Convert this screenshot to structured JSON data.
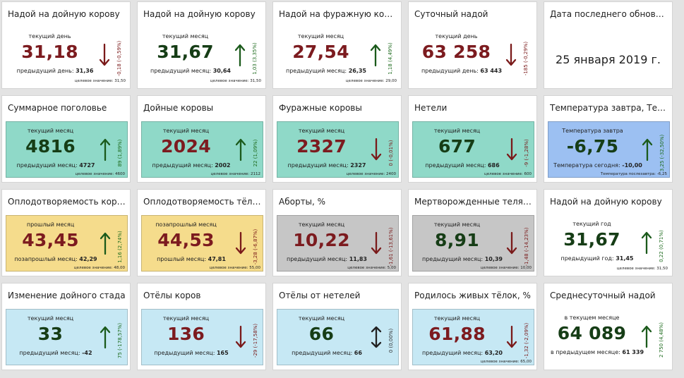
{
  "date_tile": {
    "title": "Дата последнего обновлен...",
    "value": "25 января 2019 г."
  },
  "rows": [
    [
      {
        "title": "Надой на дойную корову",
        "bg": "",
        "label": "текущий день",
        "value": "31,18",
        "value_color": "red",
        "arrow": "down",
        "delta": "-0,18 (-0,59%)",
        "prev_label": "предыдущий день:",
        "prev_value": "31,36",
        "target": "целевое значение: 31,50"
      },
      {
        "title": "Надой на дойную корову",
        "bg": "",
        "label": "текущий месяц",
        "value": "31,67",
        "value_color": "green",
        "arrow": "up",
        "delta": "1,03 (3,35%)",
        "prev_label": "предыдущий месяц:",
        "prev_value": "30,64",
        "target": "целевое значение: 31,50"
      },
      {
        "title": "Надой на фуражную корову",
        "bg": "",
        "label": "текущий месяц",
        "value": "27,54",
        "value_color": "red",
        "arrow": "up",
        "delta": "1,18 (4,49%)",
        "prev_label": "предыдущий месяц:",
        "prev_value": "26,35",
        "target": "целевое значение: 29,00"
      },
      {
        "title": "Суточный надой",
        "bg": "",
        "label": "текущий день",
        "value": "63 258",
        "value_color": "red",
        "arrow": "down",
        "delta": "-185 (-0,29%)",
        "prev_label": "предыдущий день:",
        "prev_value": "63 443",
        "target": ""
      }
    ],
    [
      {
        "title": "Суммарное поголовье",
        "bg": "#8fd9c8",
        "label": "текущий месяц",
        "value": "4816",
        "value_color": "green",
        "arrow": "up",
        "delta": "89 (1,89%)",
        "prev_label": "предыдущий месяц:",
        "prev_value": "4727",
        "target": "целевое значение: 4600"
      },
      {
        "title": "Дойные коровы",
        "bg": "#8fd9c8",
        "label": "текущий месяц",
        "value": "2024",
        "value_color": "red",
        "arrow": "up",
        "delta": "22 (1,09%)",
        "prev_label": "предыдущий месяц:",
        "prev_value": "2002",
        "target": "целевое значение: 2112"
      },
      {
        "title": "Фуражные коровы",
        "bg": "#8fd9c8",
        "label": "текущий месяц",
        "value": "2327",
        "value_color": "red",
        "arrow": "down",
        "delta": "0 (-0,01%)",
        "prev_label": "предыдущий месяц:",
        "prev_value": "2327",
        "target": "целевое значение: 2400"
      },
      {
        "title": "Нетели",
        "bg": "#8fd9c8",
        "label": "текущий месяц",
        "value": "677",
        "value_color": "green",
        "arrow": "down",
        "delta": "-9 (-1,28%)",
        "prev_label": "предыдущий месяц:",
        "prev_value": "686",
        "target": "целевое значение: 600"
      },
      {
        "title": "Температура завтра, Тем...",
        "bg": "#9cc0f2",
        "label": "Температура завтра",
        "value": "-6,75",
        "value_color": "green",
        "arrow": "up",
        "delta": "3,25 (-32,50%)",
        "prev_label": "Температура сегодня:",
        "prev_value": "-10,00",
        "target": "Температура послезавтра: -6,25"
      }
    ],
    [
      {
        "title": "Оплодотворяемость коров...",
        "bg": "#f5dc8c",
        "label": "прошлый месяц",
        "value": "43,45",
        "value_color": "red",
        "arrow": "up",
        "delta": "1,16 (2,74%)",
        "prev_label": "позапрошлый месяц:",
        "prev_value": "42,29",
        "target": "целевое значение: 48,00"
      },
      {
        "title": "Оплодотворяемость тёло...",
        "bg": "#f5dc8c",
        "label": "позапрошлый месяц",
        "value": "44,53",
        "value_color": "red",
        "arrow": "down",
        "delta": "-3,28 (-6,87%)",
        "prev_label": "прошлый месяц:",
        "prev_value": "47,81",
        "target": "целевое значение: 55,00"
      },
      {
        "title": "Аборты, %",
        "bg": "#c6c6c6",
        "label": "текущий месяц",
        "value": "10,22",
        "value_color": "red",
        "arrow": "down",
        "delta": "-1,61 (-13,61%)",
        "prev_label": "предыдущий месяц:",
        "prev_value": "11,83",
        "target": "целевое значение: 5,00"
      },
      {
        "title": "Мертворожденные телята,...",
        "bg": "#c6c6c6",
        "label": "текущий месяц",
        "value": "8,91",
        "value_color": "green",
        "arrow": "down",
        "delta": "-1,48 (-14,23%)",
        "prev_label": "предыдущий месяц:",
        "prev_value": "10,39",
        "target": "целевое значение: 10,00"
      },
      {
        "title": "Надой на дойную корову",
        "bg": "",
        "label": "текущий год",
        "value": "31,67",
        "value_color": "green",
        "arrow": "up",
        "delta": "0,22 (0,71%)",
        "prev_label": "предыдущий год:",
        "prev_value": "31,45",
        "target": "целевое значение: 31,50"
      }
    ],
    [
      {
        "title": "Изменение дойного стада",
        "bg": "#c6e8f4",
        "label": "текущий месяц",
        "value": "33",
        "value_color": "green",
        "arrow": "up",
        "delta": "75 (-178,57%)",
        "prev_label": "предыдущий месяц:",
        "prev_value": "-42",
        "target": ""
      },
      {
        "title": "Отёлы коров",
        "bg": "#c6e8f4",
        "label": "текущий месяц",
        "value": "136",
        "value_color": "red",
        "arrow": "down",
        "delta": "-29 (-17,58%)",
        "prev_label": "предыдущий месяц:",
        "prev_value": "165",
        "target": ""
      },
      {
        "title": "Отёлы от нетелей",
        "bg": "#c6e8f4",
        "label": "текущий месяц",
        "value": "66",
        "value_color": "green",
        "arrow": "both",
        "delta": "0 (0,00%)",
        "prev_label": "предыдущий месяц:",
        "prev_value": "66",
        "target": ""
      },
      {
        "title": "Родилось живых тёлок, %",
        "bg": "#c6e8f4",
        "label": "текущий месяц",
        "value": "61,88",
        "value_color": "red",
        "arrow": "down",
        "delta": "-1,32 (-2,09%)",
        "prev_label": "предыдущий месяц:",
        "prev_value": "63,20",
        "target": "целевое значение: 65,00"
      },
      {
        "title": "Среднесуточный надой",
        "bg": "",
        "label": "в текущем месяце",
        "value": "64 089",
        "value_color": "green",
        "arrow": "up",
        "delta": "2 750 (4,48%)",
        "prev_label": "в предыдущем месяце:",
        "prev_value": "61 339",
        "target": ""
      }
    ]
  ]
}
